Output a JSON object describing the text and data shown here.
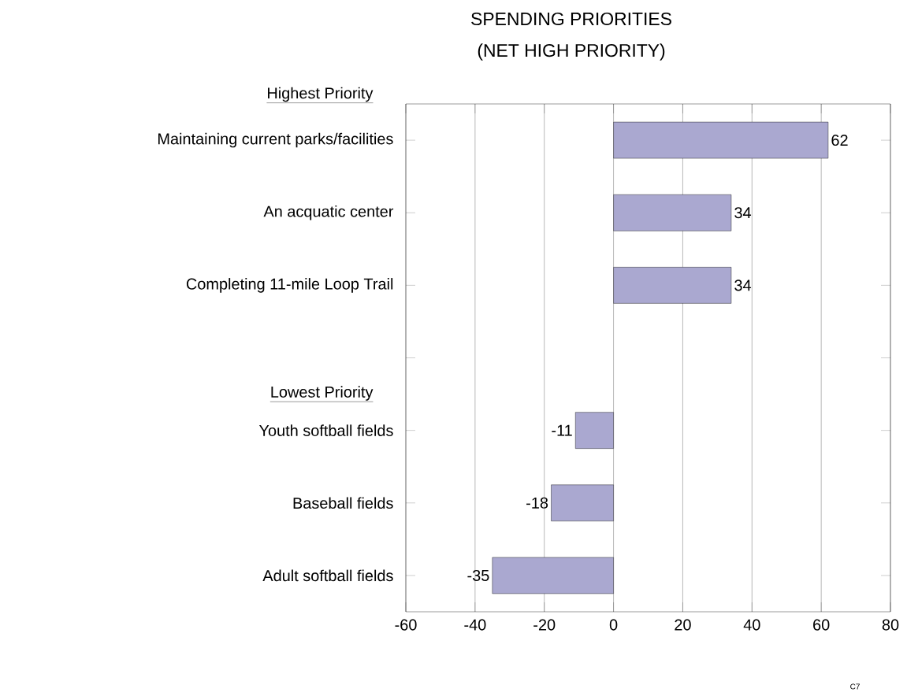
{
  "chart_data": {
    "type": "bar",
    "orientation": "horizontal",
    "title": "SPENDING PRIORITIES",
    "subtitle": "(NET HIGH PRIORITY)",
    "categories": [
      "Maintaining current parks/facilities",
      "An acquatic center",
      "Completing 11-mile Loop Trail",
      null,
      "Youth softball fields",
      "Baseball fields",
      "Adult softball fields"
    ],
    "values": [
      62,
      34,
      34,
      null,
      -11,
      -18,
      -35
    ],
    "color": "#aaa8d0",
    "xlim": [
      -60,
      80
    ],
    "xticks": [
      -60,
      -40,
      -20,
      0,
      20,
      40,
      60,
      80
    ],
    "grid": "x",
    "data_labels": true,
    "annotations": [
      "Highest Priority",
      "Lowest Priority",
      "C7"
    ]
  }
}
